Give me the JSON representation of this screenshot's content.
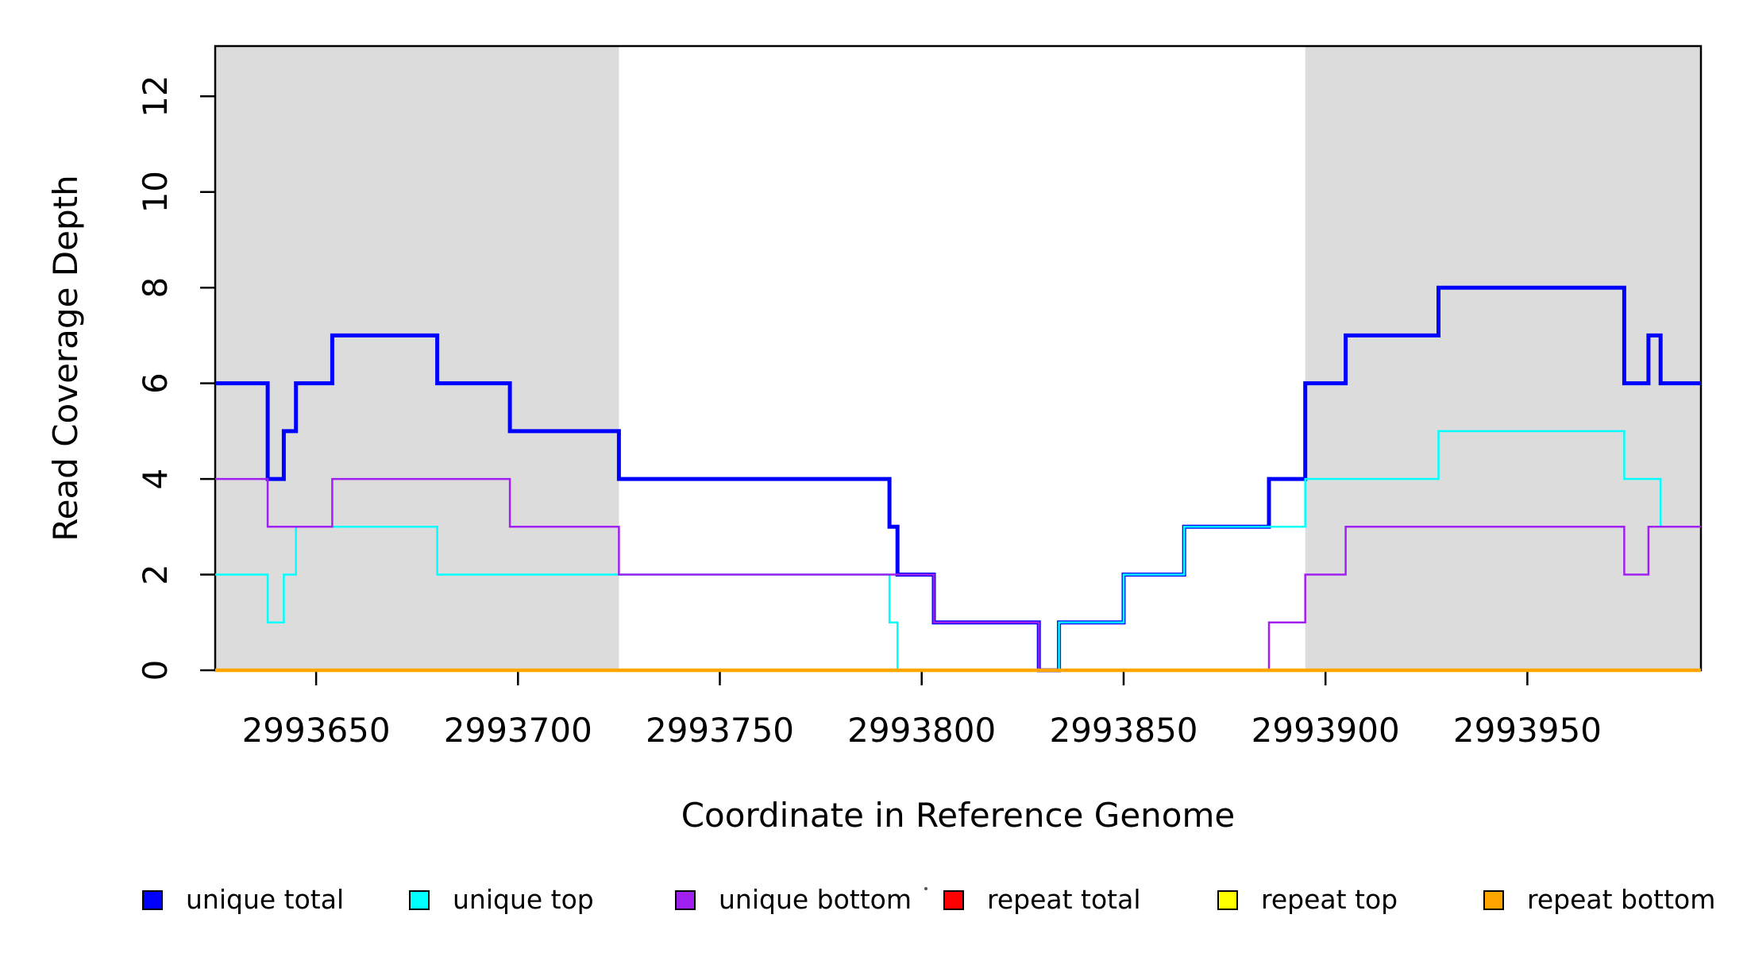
{
  "figure": {
    "background": "#FFFFFF",
    "frame_color": "#000000",
    "shade_color": "#DCDCDC"
  },
  "chart_data": {
    "type": "line",
    "step": true,
    "title": "",
    "xlabel": "Coordinate in Reference Genome",
    "ylabel": "Read Coverage Depth",
    "xlim": [
      2993625,
      2993993
    ],
    "ylim": [
      0,
      13.05
    ],
    "grid": false,
    "x_ticks": [
      2993650,
      2993700,
      2993750,
      2993800,
      2993850,
      2993900,
      2993950
    ],
    "y_ticks": [
      0,
      2,
      4,
      6,
      8,
      10,
      12
    ],
    "shaded_regions": [
      {
        "start": 2993625,
        "end": 2993725,
        "color": "#DCDCDC"
      },
      {
        "start": 2993895,
        "end": 2993993,
        "color": "#DCDCDC"
      }
    ],
    "series": [
      {
        "name": "unique total",
        "color": "#0000FF",
        "lwd": 5,
        "xend": 2993993,
        "points": [
          [
            2993625,
            6
          ],
          [
            2993638,
            4
          ],
          [
            2993642,
            5
          ],
          [
            2993645,
            6
          ],
          [
            2993654,
            7
          ],
          [
            2993680,
            6
          ],
          [
            2993698,
            5
          ],
          [
            2993725,
            4
          ],
          [
            2993792,
            3
          ],
          [
            2993794,
            2
          ],
          [
            2993803,
            1
          ],
          [
            2993829,
            0
          ],
          [
            2993834,
            1
          ],
          [
            2993850,
            2
          ],
          [
            2993865,
            3
          ],
          [
            2993886,
            4
          ],
          [
            2993895,
            6
          ],
          [
            2993905,
            7
          ],
          [
            2993928,
            8
          ],
          [
            2993974,
            6
          ],
          [
            2993980,
            7
          ],
          [
            2993983,
            6
          ]
        ]
      },
      {
        "name": "unique top",
        "color": "#00FFFF",
        "lwd": 2.5,
        "xend": 2993993,
        "points": [
          [
            2993625,
            2
          ],
          [
            2993638,
            1
          ],
          [
            2993642,
            2
          ],
          [
            2993645,
            3
          ],
          [
            2993680,
            2
          ],
          [
            2993792,
            1
          ],
          [
            2993794,
            0
          ],
          [
            2993834,
            1
          ],
          [
            2993850,
            2
          ],
          [
            2993865,
            3
          ],
          [
            2993895,
            4
          ],
          [
            2993928,
            5
          ],
          [
            2993974,
            4
          ],
          [
            2993983,
            3
          ]
        ]
      },
      {
        "name": "unique bottom",
        "color": "#A020F0",
        "lwd": 2.5,
        "xend": 2993993,
        "points": [
          [
            2993625,
            4
          ],
          [
            2993638,
            3
          ],
          [
            2993654,
            4
          ],
          [
            2993698,
            3
          ],
          [
            2993725,
            2
          ],
          [
            2993803,
            1
          ],
          [
            2993829,
            0
          ],
          [
            2993886,
            1
          ],
          [
            2993895,
            2
          ],
          [
            2993905,
            3
          ],
          [
            2993974,
            2
          ],
          [
            2993980,
            3
          ]
        ]
      },
      {
        "name": "repeat total",
        "color": "#FF0000",
        "lwd": 4,
        "xend": 2993993,
        "points": [
          [
            2993625,
            0
          ]
        ]
      },
      {
        "name": "repeat top",
        "color": "#FFFF00",
        "lwd": 4,
        "xend": 2993993,
        "points": [
          [
            2993625,
            0
          ]
        ]
      },
      {
        "name": "repeat bottom",
        "color": "#FFA500",
        "lwd": 4.5,
        "xend": 2993993,
        "points": [
          [
            2993625,
            0
          ]
        ]
      }
    ],
    "legend": {
      "position": "bottom",
      "entries": [
        {
          "label": "unique total",
          "color": "#0000FF"
        },
        {
          "label": "unique top",
          "color": "#00FFFF"
        },
        {
          "label": "unique bottom",
          "color": "#A020F0"
        },
        {
          "label": "repeat total",
          "color": "#FF0000"
        },
        {
          "label": "repeat top",
          "color": "#FFFF00"
        },
        {
          "label": "repeat bottom",
          "color": "#FFA500"
        }
      ]
    }
  }
}
